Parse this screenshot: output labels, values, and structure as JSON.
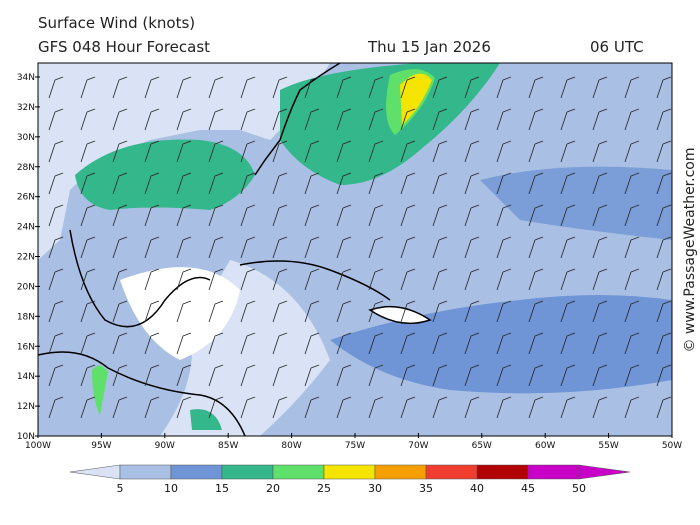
{
  "header": {
    "title": "Surface Wind (knots)",
    "model": "GFS 048 Hour Forecast",
    "date": "Thu 15 Jan 2026",
    "time": "06 UTC"
  },
  "map": {
    "lat_labels": [
      "34N",
      "32N",
      "30N",
      "28N",
      "26N",
      "24N",
      "22N",
      "20N",
      "18N",
      "16N",
      "14N",
      "12N",
      "10N"
    ],
    "lon_labels": [
      "100W",
      "95W",
      "90W",
      "85W",
      "80W",
      "75W",
      "70W",
      "65W",
      "60W",
      "55W",
      "50W"
    ]
  },
  "colorbar": {
    "labels": [
      "5",
      "10",
      "15",
      "20",
      "25",
      "30",
      "35",
      "40",
      "45",
      "50"
    ],
    "colors": [
      "#d9e3f5",
      "#a9c0e4",
      "#6f95d6",
      "#35b78c",
      "#5ee06a",
      "#f5e400",
      "#f5a000",
      "#ef3d2f",
      "#b20000",
      "#c800c8"
    ]
  },
  "credit": "© www.PassageWeather.com"
}
